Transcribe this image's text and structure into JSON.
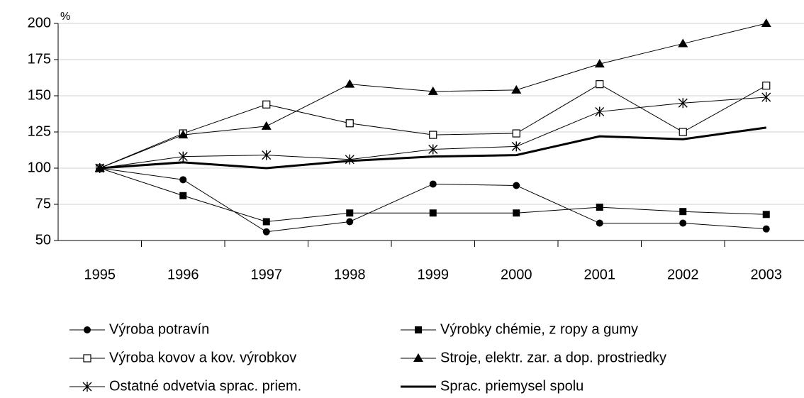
{
  "chart_data": {
    "type": "line",
    "y_label": "%",
    "categories": [
      "1995",
      "1996",
      "1997",
      "1998",
      "1999",
      "2000",
      "2001",
      "2002",
      "2003"
    ],
    "ylim": [
      50,
      200
    ],
    "yticks": [
      50,
      75,
      100,
      125,
      150,
      175,
      200
    ],
    "grid": true,
    "series": [
      {
        "name": "Výroba potravín",
        "color": "#000000",
        "marker": "circle",
        "line_width": 1,
        "values": [
          100,
          92,
          56,
          63,
          89,
          88,
          62,
          62,
          58
        ]
      },
      {
        "name": "Výrobky chémie, z ropy a gumy",
        "color": "#000000",
        "marker": "square",
        "line_width": 1,
        "values": [
          100,
          81,
          63,
          69,
          69,
          69,
          73,
          70,
          68
        ]
      },
      {
        "name": "Výroba kovov a kov. výrobkov",
        "color": "#000000",
        "marker": "square-open",
        "line_width": 1,
        "values": [
          100,
          124,
          144,
          131,
          123,
          124,
          158,
          125,
          157
        ]
      },
      {
        "name": "Stroje, elektr. zar. a dop. prostriedky",
        "color": "#000000",
        "marker": "triangle",
        "line_width": 1,
        "values": [
          100,
          123,
          129,
          158,
          153,
          154,
          172,
          186,
          200
        ]
      },
      {
        "name": "Ostatné odvetvia sprac. priem.",
        "color": "#000000",
        "marker": "asterisk",
        "line_width": 1,
        "values": [
          100,
          108,
          109,
          106,
          113,
          115,
          139,
          145,
          149
        ]
      },
      {
        "name": "Sprac. priemysel spolu",
        "color": "#000000",
        "marker": "none",
        "line_width": 3,
        "values": [
          100,
          104,
          100,
          105,
          108,
          109,
          122,
          120,
          128
        ]
      }
    ]
  }
}
